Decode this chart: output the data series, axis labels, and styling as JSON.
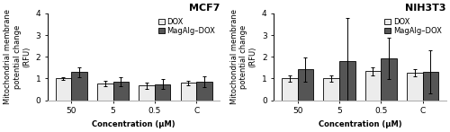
{
  "mcf7": {
    "title": "MCF7",
    "categories": [
      "50",
      "5",
      "0.5",
      "C"
    ],
    "dox_values": [
      1.0,
      0.78,
      0.68,
      0.8
    ],
    "dox_errors": [
      0.07,
      0.12,
      0.15,
      0.1
    ],
    "mag_values": [
      1.3,
      0.85,
      0.75,
      0.85
    ],
    "mag_errors": [
      0.22,
      0.2,
      0.22,
      0.25
    ]
  },
  "nih3t3": {
    "title": "NIH3T3",
    "categories": [
      "50",
      "5",
      "0.5",
      "C"
    ],
    "dox_values": [
      1.0,
      1.0,
      1.33,
      1.27
    ],
    "dox_errors": [
      0.15,
      0.15,
      0.18,
      0.15
    ],
    "mag_values": [
      1.42,
      1.8,
      1.93,
      1.3
    ],
    "mag_errors": [
      0.55,
      2.0,
      0.95,
      1.0
    ]
  },
  "ylabel": "Mitochondrial membrane\npotential change\n(RFU)",
  "xlabel": "Concentration (μM)",
  "ylim": [
    0,
    4
  ],
  "yticks": [
    0,
    1,
    2,
    3,
    4
  ],
  "bar_width": 0.38,
  "dox_color": "#ececec",
  "mag_color": "#555555",
  "legend_dox": "DOX",
  "legend_mag": "MagAlg–DOX",
  "title_fontsize": 8,
  "label_fontsize": 6,
  "tick_fontsize": 6.5,
  "legend_fontsize": 6
}
